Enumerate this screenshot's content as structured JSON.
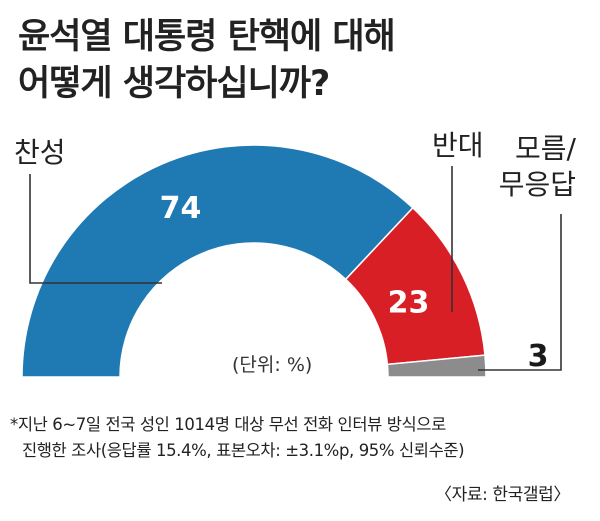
{
  "title_lines": [
    "윤석열 대통령 탄핵에 대해",
    "어떻게 생각하십니까?"
  ],
  "unit_label": "(단위: %)",
  "footnote_lines": [
    "*지난 6~7일 전국 성인 1014명 대상 무선 전화 인터뷰 방식으로",
    "진행한 조사(응답률 15.4%, 표본오차: ±3.1%p, 95% 신뢰수준)"
  ],
  "source": "〈자료: 한국갤럽〉",
  "colors": {
    "찬성": "#1f7ab3",
    "반대": "#d91f26",
    "모름/무응답": "#8c8c8c"
  },
  "chart_data": {
    "type": "pie",
    "shape": "semi-donut",
    "categories": [
      "찬성",
      "반대",
      "모름/무응답"
    ],
    "category_lines": [
      [
        "찬성"
      ],
      [
        "반대"
      ],
      [
        "모름/",
        "무응답"
      ]
    ],
    "values": [
      74,
      23,
      3
    ],
    "value_labels": [
      "74",
      "23",
      "3"
    ]
  }
}
